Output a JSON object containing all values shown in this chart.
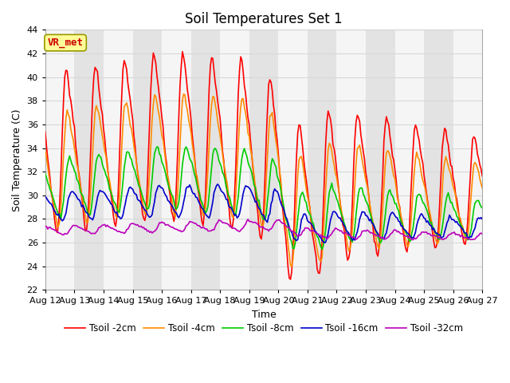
{
  "title": "Soil Temperatures Set 1",
  "xlabel": "Time",
  "ylabel": "Soil Temperature (C)",
  "ylim": [
    22,
    44
  ],
  "yticks": [
    22,
    24,
    26,
    28,
    30,
    32,
    34,
    36,
    38,
    40,
    42,
    44
  ],
  "series_labels": [
    "Tsoil -2cm",
    "Tsoil -4cm",
    "Tsoil -8cm",
    "Tsoil -16cm",
    "Tsoil -32cm"
  ],
  "series_colors": [
    "#ff0000",
    "#ff8c00",
    "#00cc00",
    "#0000cc",
    "#bb00bb"
  ],
  "annotation_text": "VR_met",
  "annotation_color": "#cc0000",
  "annotation_bg": "#ffff99",
  "band_colors": [
    "#f5f5f5",
    "#e3e3e3"
  ],
  "grid_color": "#d8d8d8",
  "title_fontsize": 12,
  "axis_fontsize": 9,
  "tick_fontsize": 8,
  "legend_fontsize": 8.5
}
